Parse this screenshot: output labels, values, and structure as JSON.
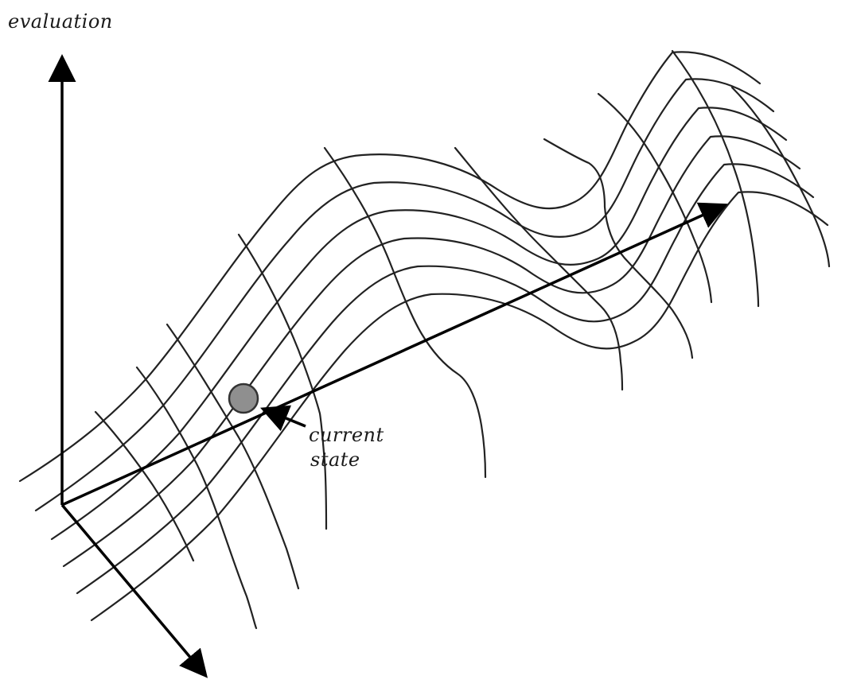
{
  "diagram": {
    "axis_label": "evaluation",
    "marker_label_line1": "current",
    "marker_label_line2": "state",
    "colors": {
      "line": "#222222",
      "axis": "#000000",
      "marker_fill": "#8f8f8f",
      "marker_stroke": "#333333",
      "background": "#ffffff"
    }
  }
}
